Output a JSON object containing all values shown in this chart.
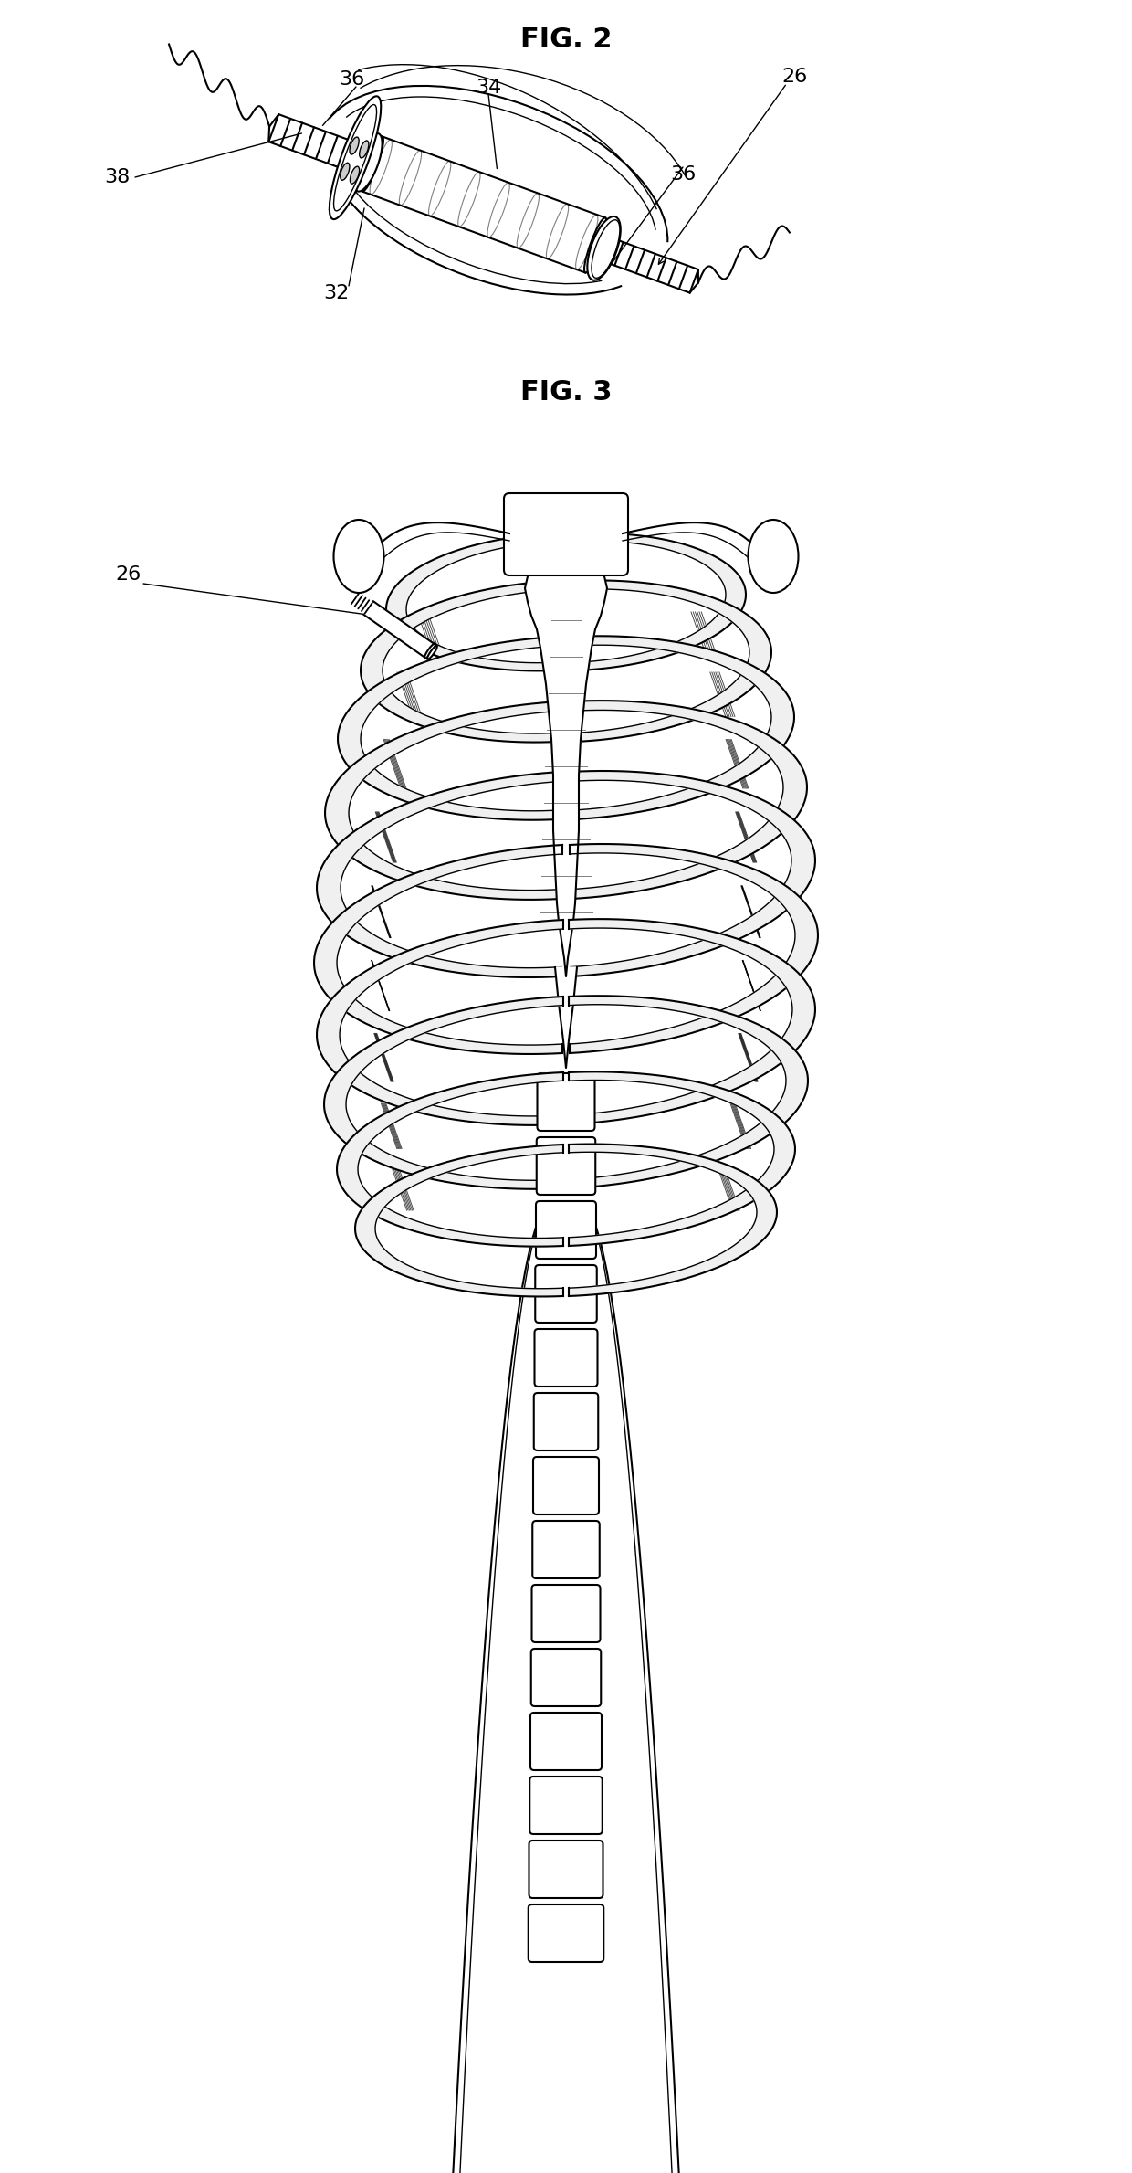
{
  "fig2_title": "FIG. 2",
  "fig3_title": "FIG. 3",
  "label_36": "36",
  "label_34": "34",
  "label_26_fig2": "26",
  "label_38": "38",
  "label_32": "32",
  "label_36b": "36",
  "label_26_fig3": "26",
  "bg_color": "#ffffff",
  "line_color": "#000000",
  "title_fontsize": 22,
  "label_fontsize": 16,
  "fig_width": 12.4,
  "fig_height": 23.79
}
